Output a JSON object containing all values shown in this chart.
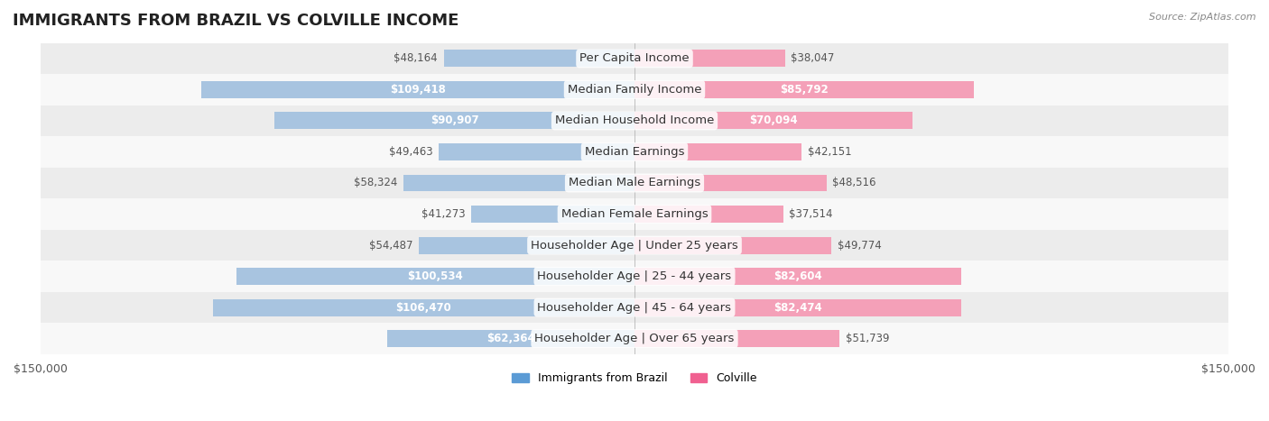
{
  "title": "IMMIGRANTS FROM BRAZIL VS COLVILLE INCOME",
  "source": "Source: ZipAtlas.com",
  "categories": [
    "Per Capita Income",
    "Median Family Income",
    "Median Household Income",
    "Median Earnings",
    "Median Male Earnings",
    "Median Female Earnings",
    "Householder Age | Under 25 years",
    "Householder Age | 25 - 44 years",
    "Householder Age | 45 - 64 years",
    "Householder Age | Over 65 years"
  ],
  "brazil_values": [
    48164,
    109418,
    90907,
    49463,
    58324,
    41273,
    54487,
    100534,
    106470,
    62364
  ],
  "colville_values": [
    38047,
    85792,
    70094,
    42151,
    48516,
    37514,
    49774,
    82604,
    82474,
    51739
  ],
  "brazil_color_bar": "#a8c4e0",
  "colville_color_bar": "#f4a0b8",
  "brazil_color_label": "#5b9bd5",
  "colville_color_label": "#f06090",
  "brazil_text_dark": "#5b9bd5",
  "colville_text_dark": "#e05080",
  "max_value": 150000,
  "bar_height": 0.55,
  "background_color": "#f5f5f5",
  "row_bg_color": "#ececec",
  "row_bg_color2": "#f8f8f8",
  "label_fontsize": 9.5,
  "value_fontsize": 8.5,
  "title_fontsize": 13
}
